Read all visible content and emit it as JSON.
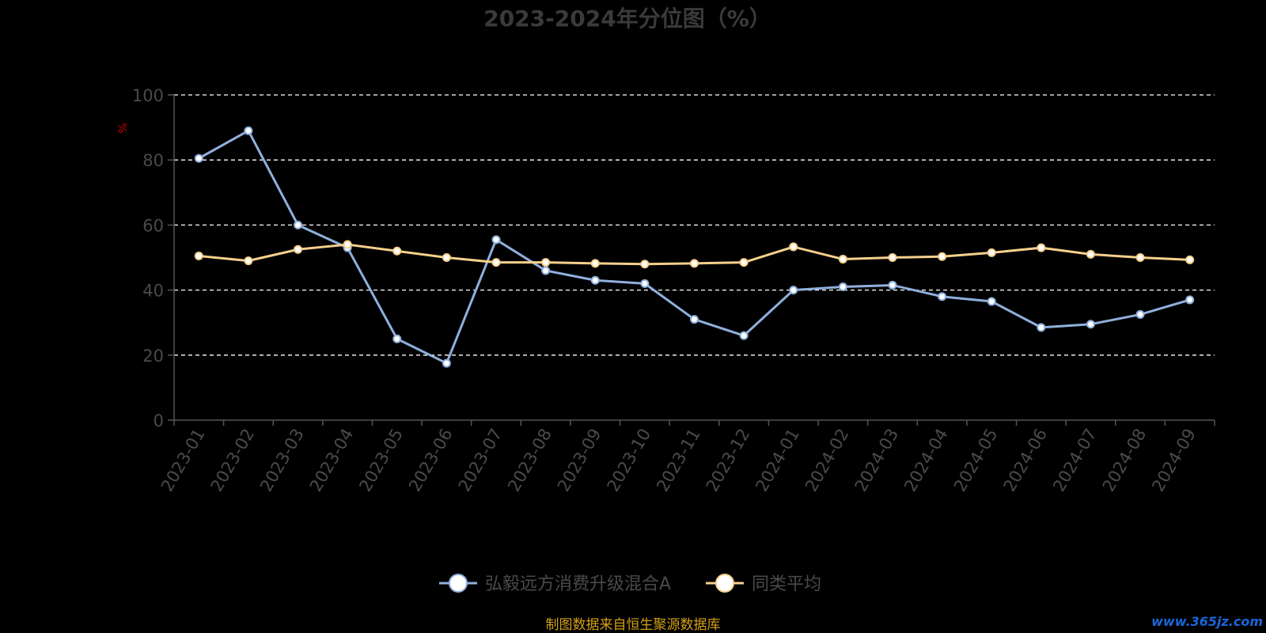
{
  "chart_data": {
    "type": "line",
    "title": "2023-2024年分位图（%）",
    "ylabel": "%",
    "xlabel": "",
    "ylim": [
      0,
      100
    ],
    "yticks": [
      0,
      20,
      40,
      60,
      80,
      100
    ],
    "grid": true,
    "legend_position": "bottom-center",
    "categories": [
      "2023-01",
      "2023-02",
      "2023-03",
      "2023-04",
      "2023-05",
      "2023-06",
      "2023-07",
      "2023-08",
      "2023-09",
      "2023-10",
      "2023-11",
      "2023-12",
      "2024-01",
      "2024-02",
      "2024-03",
      "2024-04",
      "2024-05",
      "2024-06",
      "2024-07",
      "2024-08",
      "2024-09"
    ],
    "series": [
      {
        "name": "弘毅远方消费升级混合A",
        "color": "#8fb0dc",
        "values": [
          80.5,
          89,
          60,
          53,
          25,
          17.5,
          55.5,
          46,
          43,
          42,
          31,
          26,
          40,
          41,
          41.5,
          38,
          36.5,
          28.5,
          29.5,
          32.5,
          37
        ]
      },
      {
        "name": "同类平均",
        "color": "#f6d08c",
        "values": [
          50.5,
          49,
          52.5,
          54,
          52,
          50,
          48.5,
          48.5,
          48.2,
          48,
          48.2,
          48.5,
          53.3,
          49.5,
          50,
          50.3,
          51.5,
          53,
          51,
          50,
          49.3
        ]
      }
    ],
    "source_note": "制图数据来自恒生聚源数据库",
    "watermark": "www.365jz.com"
  }
}
